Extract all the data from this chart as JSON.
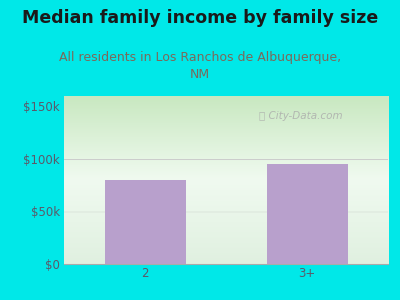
{
  "title": "Median family income by family size",
  "subtitle": "All residents in Los Ranchos de Albuquerque,\nNM",
  "categories": [
    "2",
    "3+"
  ],
  "values": [
    80000,
    95000
  ],
  "bar_color": "#b8a0cc",
  "outer_bg": "#00e8e8",
  "title_color": "#1a1a1a",
  "subtitle_color": "#7a6a5a",
  "axis_label_color": "#5a5a6a",
  "yticks": [
    0,
    50000,
    100000,
    150000
  ],
  "ytick_labels": [
    "$0",
    "$50k",
    "$100k",
    "$150k"
  ],
  "ylim": [
    0,
    160000
  ],
  "watermark": "ⓘ City-Data.com",
  "title_fontsize": 12.5,
  "subtitle_fontsize": 9,
  "tick_fontsize": 8.5,
  "gradient_top": "#c8e8c0",
  "gradient_mid": "#f0faf0",
  "gradient_bottom": "#e0f0e0"
}
